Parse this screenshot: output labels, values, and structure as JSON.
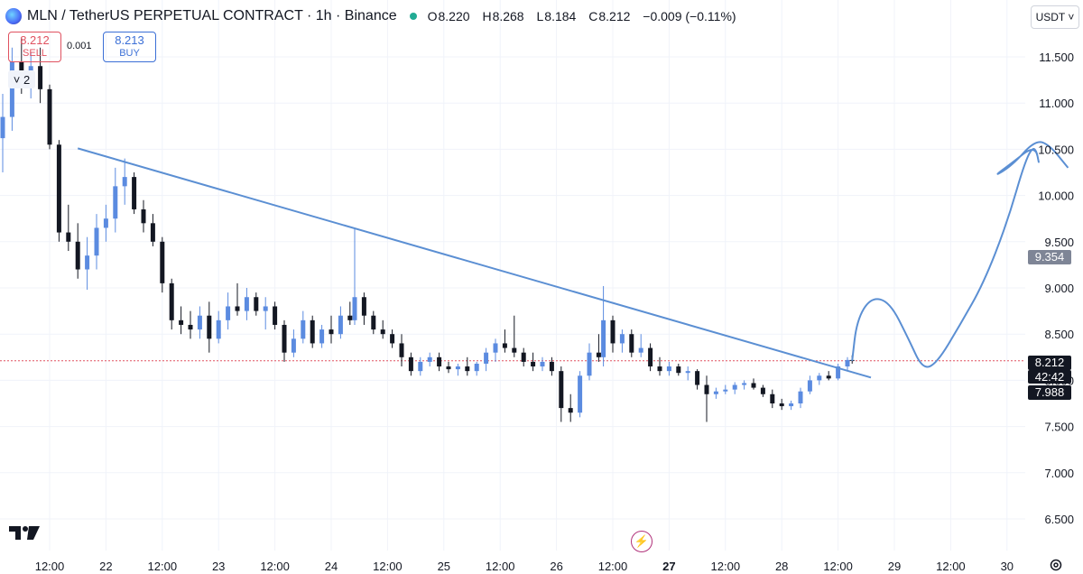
{
  "header": {
    "title": "MLN / TetherUS PERPETUAL CONTRACT · 1h · Binance",
    "ohlc": {
      "o": "8.220",
      "h": "8.268",
      "l": "8.184",
      "c": "8.212",
      "change": "−0.009 (−0.11%)"
    },
    "ohlc_keys": {
      "o": "O",
      "h": "H",
      "l": "L",
      "c": "C"
    }
  },
  "trade": {
    "sell_price": "8.212",
    "sell_label": "SELL",
    "spread": "0.001",
    "buy_price": "8.213",
    "buy_label": "BUY"
  },
  "legend_toggle": {
    "caret": "˅",
    "count": "2"
  },
  "currency": "USDT ˅",
  "price_tags": {
    "target": "9.354",
    "last_price": "8.212",
    "countdown": "42:42",
    "low_mark": "7.988"
  },
  "colors": {
    "up": "#5b8be0",
    "down": "#131722",
    "trendline": "#5b8fd3",
    "last_price_line": "#e05260",
    "grid": "#f0f3fa",
    "axis_text": "#131722"
  },
  "chart_data": {
    "type": "candlestick",
    "symbol": "MLN/USDT",
    "timeframe": "1h",
    "y_ticks": [
      "11.500",
      "11.000",
      "10.500",
      "10.000",
      "9.500",
      "9.000",
      "8.500",
      "8.000",
      "7.500",
      "7.000",
      "6.500"
    ],
    "x_ticks": [
      "12:00",
      "22",
      "12:00",
      "23",
      "12:00",
      "24",
      "12:00",
      "25",
      "12:00",
      "26",
      "12:00",
      "27",
      "12:00",
      "28",
      "12:00",
      "29",
      "12:00",
      "30"
    ],
    "ylim": [
      6.2,
      11.8
    ],
    "x_unit": "hours from first 12:00 tick (21 Jan 12:00)",
    "candles": [
      {
        "t": -12,
        "o": 10.6,
        "h": 10.95,
        "l": 10.4,
        "c": 10.62
      },
      {
        "t": -10,
        "o": 10.62,
        "h": 11.1,
        "l": 10.25,
        "c": 10.85
      },
      {
        "t": -8,
        "o": 10.85,
        "h": 11.6,
        "l": 10.7,
        "c": 11.45
      },
      {
        "t": -6,
        "o": 11.45,
        "h": 11.7,
        "l": 11.1,
        "c": 11.2
      },
      {
        "t": -4,
        "o": 11.2,
        "h": 11.55,
        "l": 11.05,
        "c": 11.4
      },
      {
        "t": -2,
        "o": 11.4,
        "h": 11.6,
        "l": 11.0,
        "c": 11.15
      },
      {
        "t": 0,
        "o": 11.15,
        "h": 11.2,
        "l": 10.5,
        "c": 10.55
      },
      {
        "t": 2,
        "o": 10.55,
        "h": 10.6,
        "l": 9.5,
        "c": 9.6
      },
      {
        "t": 4,
        "o": 9.6,
        "h": 9.9,
        "l": 9.4,
        "c": 9.5
      },
      {
        "t": 6,
        "o": 9.5,
        "h": 9.7,
        "l": 9.1,
        "c": 9.2
      },
      {
        "t": 8,
        "o": 9.2,
        "h": 9.55,
        "l": 8.98,
        "c": 9.35
      },
      {
        "t": 10,
        "o": 9.35,
        "h": 9.8,
        "l": 9.2,
        "c": 9.65
      },
      {
        "t": 12,
        "o": 9.65,
        "h": 9.9,
        "l": 9.5,
        "c": 9.75
      },
      {
        "t": 14,
        "o": 9.75,
        "h": 10.3,
        "l": 9.6,
        "c": 10.1
      },
      {
        "t": 16,
        "o": 10.1,
        "h": 10.4,
        "l": 9.9,
        "c": 10.2
      },
      {
        "t": 18,
        "o": 10.2,
        "h": 10.25,
        "l": 9.8,
        "c": 9.85
      },
      {
        "t": 20,
        "o": 9.85,
        "h": 9.95,
        "l": 9.6,
        "c": 9.7
      },
      {
        "t": 22,
        "o": 9.7,
        "h": 9.8,
        "l": 9.45,
        "c": 9.5
      },
      {
        "t": 24,
        "o": 9.5,
        "h": 9.55,
        "l": 8.95,
        "c": 9.05
      },
      {
        "t": 26,
        "o": 9.05,
        "h": 9.1,
        "l": 8.55,
        "c": 8.65
      },
      {
        "t": 28,
        "o": 8.65,
        "h": 8.8,
        "l": 8.5,
        "c": 8.6
      },
      {
        "t": 30,
        "o": 8.6,
        "h": 8.75,
        "l": 8.45,
        "c": 8.55
      },
      {
        "t": 32,
        "o": 8.55,
        "h": 8.8,
        "l": 8.45,
        "c": 8.7
      },
      {
        "t": 34,
        "o": 8.7,
        "h": 8.85,
        "l": 8.3,
        "c": 8.45
      },
      {
        "t": 36,
        "o": 8.45,
        "h": 8.75,
        "l": 8.4,
        "c": 8.65
      },
      {
        "t": 38,
        "o": 8.65,
        "h": 8.95,
        "l": 8.55,
        "c": 8.8
      },
      {
        "t": 40,
        "o": 8.8,
        "h": 9.05,
        "l": 8.7,
        "c": 8.75
      },
      {
        "t": 42,
        "o": 8.75,
        "h": 9.0,
        "l": 8.65,
        "c": 8.9
      },
      {
        "t": 44,
        "o": 8.9,
        "h": 8.95,
        "l": 8.7,
        "c": 8.75
      },
      {
        "t": 46,
        "o": 8.75,
        "h": 8.9,
        "l": 8.55,
        "c": 8.8
      },
      {
        "t": 48,
        "o": 8.8,
        "h": 8.85,
        "l": 8.55,
        "c": 8.6
      },
      {
        "t": 50,
        "o": 8.6,
        "h": 8.65,
        "l": 8.2,
        "c": 8.3
      },
      {
        "t": 52,
        "o": 8.3,
        "h": 8.55,
        "l": 8.25,
        "c": 8.45
      },
      {
        "t": 54,
        "o": 8.45,
        "h": 8.75,
        "l": 8.4,
        "c": 8.65
      },
      {
        "t": 56,
        "o": 8.65,
        "h": 8.7,
        "l": 8.35,
        "c": 8.4
      },
      {
        "t": 58,
        "o": 8.4,
        "h": 8.6,
        "l": 8.35,
        "c": 8.55
      },
      {
        "t": 60,
        "o": 8.55,
        "h": 8.7,
        "l": 8.4,
        "c": 8.5
      },
      {
        "t": 62,
        "o": 8.5,
        "h": 8.8,
        "l": 8.45,
        "c": 8.7
      },
      {
        "t": 64,
        "o": 8.7,
        "h": 8.85,
        "l": 8.6,
        "c": 8.65
      },
      {
        "t": 65,
        "o": 8.65,
        "h": 9.65,
        "l": 8.6,
        "c": 8.9
      },
      {
        "t": 67,
        "o": 8.9,
        "h": 8.95,
        "l": 8.6,
        "c": 8.7
      },
      {
        "t": 69,
        "o": 8.7,
        "h": 8.75,
        "l": 8.5,
        "c": 8.55
      },
      {
        "t": 71,
        "o": 8.55,
        "h": 8.65,
        "l": 8.45,
        "c": 8.5
      },
      {
        "t": 73,
        "o": 8.5,
        "h": 8.55,
        "l": 8.35,
        "c": 8.4
      },
      {
        "t": 75,
        "o": 8.4,
        "h": 8.5,
        "l": 8.15,
        "c": 8.25
      },
      {
        "t": 77,
        "o": 8.25,
        "h": 8.3,
        "l": 8.05,
        "c": 8.1
      },
      {
        "t": 79,
        "o": 8.1,
        "h": 8.25,
        "l": 8.05,
        "c": 8.2
      },
      {
        "t": 81,
        "o": 8.2,
        "h": 8.3,
        "l": 8.15,
        "c": 8.25
      },
      {
        "t": 83,
        "o": 8.25,
        "h": 8.3,
        "l": 8.1,
        "c": 8.15
      },
      {
        "t": 85,
        "o": 8.15,
        "h": 8.2,
        "l": 8.08,
        "c": 8.12
      },
      {
        "t": 87,
        "o": 8.12,
        "h": 8.18,
        "l": 8.05,
        "c": 8.15
      },
      {
        "t": 89,
        "o": 8.15,
        "h": 8.25,
        "l": 8.05,
        "c": 8.1
      },
      {
        "t": 91,
        "o": 8.1,
        "h": 8.2,
        "l": 8.05,
        "c": 8.18
      },
      {
        "t": 93,
        "o": 8.18,
        "h": 8.35,
        "l": 8.1,
        "c": 8.3
      },
      {
        "t": 95,
        "o": 8.3,
        "h": 8.45,
        "l": 8.2,
        "c": 8.4
      },
      {
        "t": 97,
        "o": 8.4,
        "h": 8.55,
        "l": 8.3,
        "c": 8.35
      },
      {
        "t": 99,
        "o": 8.35,
        "h": 8.7,
        "l": 8.25,
        "c": 8.3
      },
      {
        "t": 101,
        "o": 8.3,
        "h": 8.35,
        "l": 8.15,
        "c": 8.2
      },
      {
        "t": 103,
        "o": 8.2,
        "h": 8.3,
        "l": 8.1,
        "c": 8.15
      },
      {
        "t": 105,
        "o": 8.15,
        "h": 8.25,
        "l": 8.1,
        "c": 8.2
      },
      {
        "t": 107,
        "o": 8.2,
        "h": 8.25,
        "l": 8.05,
        "c": 8.1
      },
      {
        "t": 109,
        "o": 8.1,
        "h": 8.15,
        "l": 7.55,
        "c": 7.7
      },
      {
        "t": 111,
        "o": 7.7,
        "h": 7.85,
        "l": 7.55,
        "c": 7.65
      },
      {
        "t": 113,
        "o": 7.65,
        "h": 8.1,
        "l": 7.6,
        "c": 8.05
      },
      {
        "t": 115,
        "o": 8.05,
        "h": 8.4,
        "l": 8.0,
        "c": 8.3
      },
      {
        "t": 117,
        "o": 8.3,
        "h": 8.5,
        "l": 8.2,
        "c": 8.25
      },
      {
        "t": 118,
        "o": 8.25,
        "h": 9.02,
        "l": 8.15,
        "c": 8.65
      },
      {
        "t": 120,
        "o": 8.65,
        "h": 8.7,
        "l": 8.3,
        "c": 8.4
      },
      {
        "t": 122,
        "o": 8.4,
        "h": 8.55,
        "l": 8.3,
        "c": 8.5
      },
      {
        "t": 124,
        "o": 8.5,
        "h": 8.55,
        "l": 8.25,
        "c": 8.3
      },
      {
        "t": 126,
        "o": 8.3,
        "h": 8.5,
        "l": 8.25,
        "c": 8.35
      },
      {
        "t": 128,
        "o": 8.35,
        "h": 8.4,
        "l": 8.1,
        "c": 8.15
      },
      {
        "t": 130,
        "o": 8.15,
        "h": 8.25,
        "l": 8.05,
        "c": 8.1
      },
      {
        "t": 132,
        "o": 8.1,
        "h": 8.2,
        "l": 8.05,
        "c": 8.15
      },
      {
        "t": 134,
        "o": 8.15,
        "h": 8.18,
        "l": 8.05,
        "c": 8.08
      },
      {
        "t": 136,
        "o": 8.08,
        "h": 8.15,
        "l": 8.0,
        "c": 8.1
      },
      {
        "t": 138,
        "o": 8.1,
        "h": 8.12,
        "l": 7.9,
        "c": 7.95
      },
      {
        "t": 140,
        "o": 7.95,
        "h": 8.05,
        "l": 7.55,
        "c": 7.85
      },
      {
        "t": 142,
        "o": 7.85,
        "h": 7.92,
        "l": 7.8,
        "c": 7.88
      },
      {
        "t": 144,
        "o": 7.88,
        "h": 7.95,
        "l": 7.85,
        "c": 7.9
      },
      {
        "t": 146,
        "o": 7.9,
        "h": 7.98,
        "l": 7.85,
        "c": 7.95
      },
      {
        "t": 148,
        "o": 7.95,
        "h": 8.0,
        "l": 7.9,
        "c": 7.97
      },
      {
        "t": 150,
        "o": 7.97,
        "h": 8.02,
        "l": 7.9,
        "c": 7.92
      },
      {
        "t": 152,
        "o": 7.92,
        "h": 7.95,
        "l": 7.82,
        "c": 7.85
      },
      {
        "t": 154,
        "o": 7.85,
        "h": 7.9,
        "l": 7.7,
        "c": 7.75
      },
      {
        "t": 156,
        "o": 7.75,
        "h": 7.8,
        "l": 7.68,
        "c": 7.72
      },
      {
        "t": 158,
        "o": 7.72,
        "h": 7.78,
        "l": 7.68,
        "c": 7.75
      },
      {
        "t": 160,
        "o": 7.75,
        "h": 7.92,
        "l": 7.7,
        "c": 7.88
      },
      {
        "t": 162,
        "o": 7.88,
        "h": 8.05,
        "l": 7.85,
        "c": 8.0
      },
      {
        "t": 164,
        "o": 8.0,
        "h": 8.08,
        "l": 7.95,
        "c": 8.05
      },
      {
        "t": 166,
        "o": 8.05,
        "h": 8.1,
        "l": 8.0,
        "c": 8.02
      },
      {
        "t": 168,
        "o": 8.02,
        "h": 8.18,
        "l": 8.0,
        "c": 8.15
      },
      {
        "t": 170,
        "o": 8.15,
        "h": 8.25,
        "l": 8.1,
        "c": 8.22
      },
      {
        "t": 171,
        "o": 8.22,
        "h": 8.27,
        "l": 8.18,
        "c": 8.21
      }
    ],
    "trendline": [
      {
        "t": 6,
        "y": 10.51
      },
      {
        "t": 175,
        "y": 8.03
      }
    ],
    "projection_path": [
      {
        "t": 171,
        "y": 8.21
      },
      {
        "t": 172,
        "y": 8.65
      },
      {
        "t": 175,
        "y": 8.9
      },
      {
        "t": 179,
        "y": 8.85
      },
      {
        "t": 183,
        "y": 8.45
      },
      {
        "t": 186,
        "y": 8.12
      },
      {
        "t": 189,
        "y": 8.18
      },
      {
        "t": 194,
        "y": 8.6
      },
      {
        "t": 199,
        "y": 9.05
      },
      {
        "t": 204,
        "y": 9.7
      },
      {
        "t": 208,
        "y": 10.4
      },
      {
        "t": 210,
        "y": 10.55
      },
      {
        "t": 211,
        "y": 10.3
      },
      {
        "t": 210,
        "y": 10.55
      },
      {
        "t": 205,
        "y": 10.35
      },
      {
        "t": 201,
        "y": 10.2
      },
      {
        "t": 205,
        "y": 10.32
      },
      {
        "t": 210,
        "y": 10.6
      },
      {
        "t": 213,
        "y": 10.55
      },
      {
        "t": 217,
        "y": 10.3
      }
    ],
    "last_price": 8.212,
    "x_start_hours": -13,
    "x_end_hours": 250
  }
}
